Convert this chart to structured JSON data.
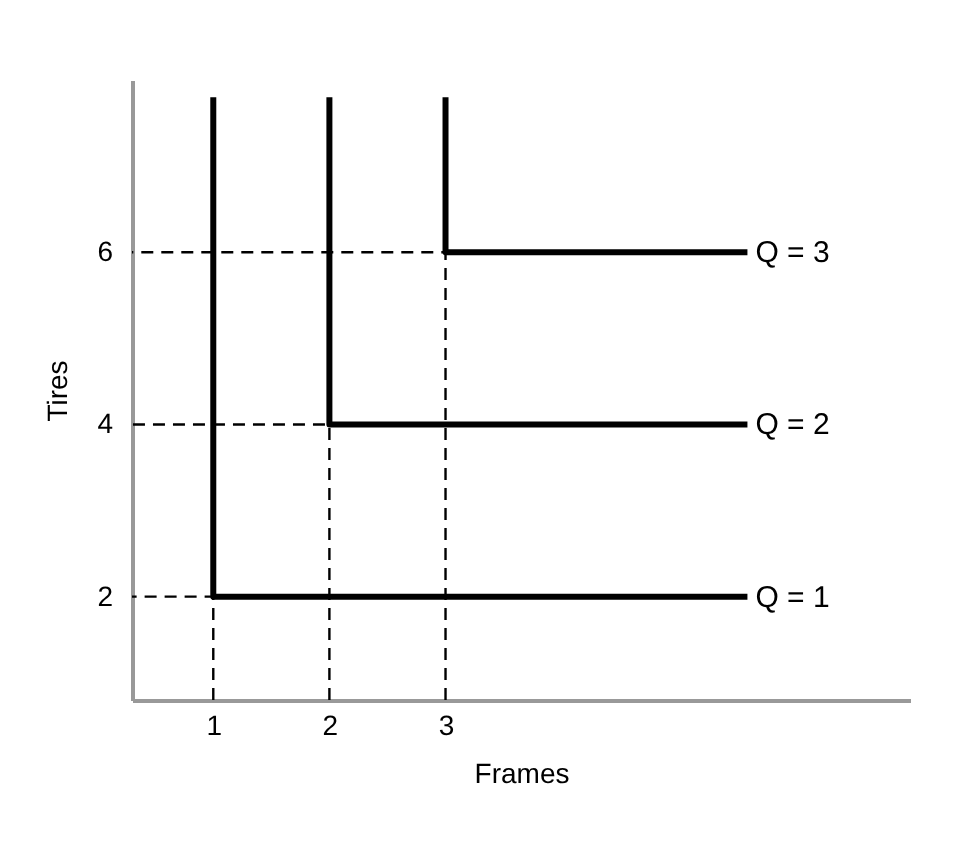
{
  "chart_data": {
    "type": "line",
    "xlabel": "Frames",
    "ylabel": "Tires",
    "xlim": [
      0.3,
      7
    ],
    "ylim": [
      0.8,
      8
    ],
    "xticks": [
      1,
      2,
      3
    ],
    "yticks": [
      2,
      4,
      6
    ],
    "grid": false,
    "marker": "none",
    "series": [
      {
        "name": "Q = 1",
        "color": "#000000",
        "line_style": "solid",
        "x": [
          1,
          1,
          5.6
        ],
        "values": [
          7.8,
          2,
          2
        ]
      },
      {
        "name": "Q = 2",
        "color": "#000000",
        "line_style": "solid",
        "x": [
          2,
          2,
          5.6
        ],
        "values": [
          7.8,
          4,
          4
        ]
      },
      {
        "name": "Q = 3",
        "color": "#000000",
        "line_style": "solid",
        "x": [
          3,
          3,
          5.6
        ],
        "values": [
          7.8,
          6,
          6
        ]
      },
      {
        "color": "#000000",
        "line_style": "dashed",
        "x": [
          1,
          1,
          0.3
        ],
        "values": [
          0.8,
          2,
          2
        ]
      },
      {
        "color": "#000000",
        "line_style": "dashed",
        "x": [
          2,
          2,
          0.3
        ],
        "values": [
          0.8,
          4,
          4
        ]
      },
      {
        "color": "#000000",
        "line_style": "dashed",
        "x": [
          3,
          3,
          0.3
        ],
        "values": [
          0.8,
          6,
          6
        ]
      }
    ]
  }
}
